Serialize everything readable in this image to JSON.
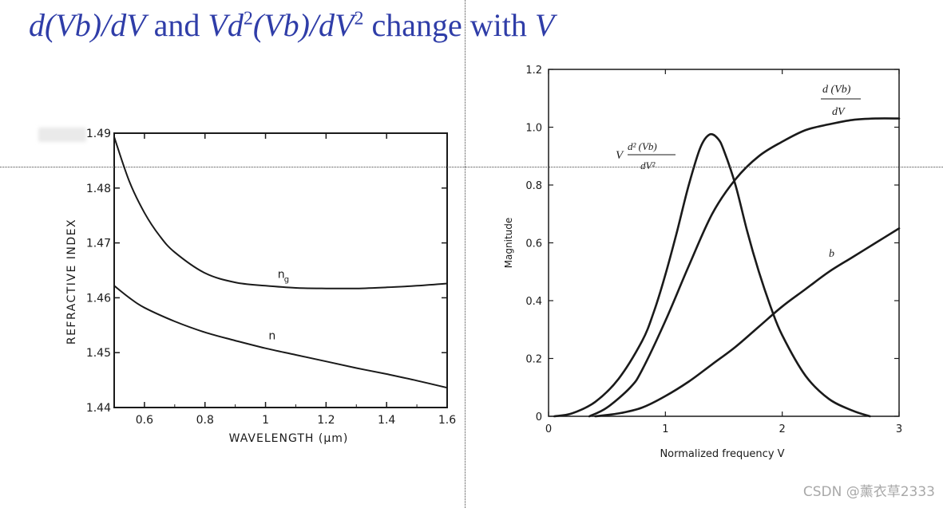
{
  "slide": {
    "title_parts": [
      "d(Vb)/dV",
      " and ",
      "Vd",
      "2",
      "(Vb)/dV",
      "2",
      " change with ",
      "V"
    ]
  },
  "colors": {
    "title": "#2f3da8",
    "curve": "#1a1a1a",
    "guides": "#444444"
  },
  "chart_data": [
    {
      "type": "line",
      "title": "",
      "xlabel": "WAVELENGTH (μm)",
      "ylabel": "REFRACTIVE INDEX",
      "xlim": [
        0.5,
        1.6
      ],
      "ylim": [
        1.44,
        1.49
      ],
      "xticks": [
        0.6,
        0.8,
        1,
        1.2,
        1.4,
        1.6
      ],
      "xtick_labels": [
        "0.6",
        "0.8",
        "1",
        "1.2",
        "1.4",
        "1.6"
      ],
      "yticks": [
        1.44,
        1.45,
        1.46,
        1.47,
        1.48,
        1.49
      ],
      "ytick_labels": [
        "1.44",
        "1.45",
        "1.46",
        "1.47",
        "1.48",
        "1.49"
      ],
      "grid": false,
      "series": [
        {
          "name": "ng",
          "label_main": "n",
          "label_sub": "g",
          "x": [
            0.5,
            0.55,
            0.6,
            0.65,
            0.7,
            0.8,
            0.9,
            1.0,
            1.1,
            1.2,
            1.3,
            1.4,
            1.5,
            1.6
          ],
          "y": [
            1.4893,
            1.4812,
            1.4755,
            1.4713,
            1.4683,
            1.4645,
            1.4628,
            1.4622,
            1.4618,
            1.4617,
            1.4617,
            1.4619,
            1.4622,
            1.4626
          ]
        },
        {
          "name": "n",
          "label_main": "n",
          "label_sub": "",
          "x": [
            0.5,
            0.55,
            0.6,
            0.7,
            0.8,
            0.9,
            1.0,
            1.1,
            1.2,
            1.3,
            1.4,
            1.5,
            1.6
          ],
          "y": [
            1.4622,
            1.46,
            1.4582,
            1.4557,
            1.4537,
            1.4522,
            1.4508,
            1.4496,
            1.4484,
            1.4472,
            1.4461,
            1.4449,
            1.4436
          ]
        }
      ]
    },
    {
      "type": "line",
      "title": "",
      "xlabel": "Normalized frequency V",
      "ylabel": "Magnitude",
      "xlim": [
        0,
        3
      ],
      "ylim": [
        0,
        1.2
      ],
      "xticks": [
        0,
        1,
        2,
        3
      ],
      "xtick_labels": [
        "0",
        "1",
        "2",
        "3"
      ],
      "yticks": [
        0,
        0.2,
        0.4,
        0.6,
        0.8,
        1.0,
        1.2
      ],
      "ytick_labels": [
        "0",
        "0.2",
        "0.4",
        "0.6",
        "0.8",
        "1.0",
        "1.2"
      ],
      "grid": false,
      "series": [
        {
          "name": "V d²(Vb)/dV²",
          "x": [
            0.05,
            0.2,
            0.4,
            0.6,
            0.8,
            0.9,
            1.0,
            1.1,
            1.2,
            1.3,
            1.38,
            1.45,
            1.5,
            1.6,
            1.7,
            1.8,
            1.9,
            2.0,
            2.2,
            2.4,
            2.6,
            2.75
          ],
          "y": [
            0.0,
            0.01,
            0.05,
            0.13,
            0.26,
            0.36,
            0.49,
            0.64,
            0.8,
            0.93,
            0.975,
            0.96,
            0.92,
            0.8,
            0.64,
            0.5,
            0.38,
            0.28,
            0.14,
            0.06,
            0.02,
            0.0
          ]
        },
        {
          "name": "d(Vb)/dV",
          "x": [
            0.35,
            0.5,
            0.7,
            0.8,
            1.0,
            1.2,
            1.4,
            1.6,
            1.8,
            2.0,
            2.2,
            2.4,
            2.6,
            2.8,
            3.0
          ],
          "y": [
            0.0,
            0.03,
            0.1,
            0.16,
            0.33,
            0.52,
            0.7,
            0.82,
            0.9,
            0.95,
            0.99,
            1.01,
            1.025,
            1.03,
            1.03
          ]
        },
        {
          "name": "b",
          "x": [
            0.4,
            0.6,
            0.8,
            1.0,
            1.2,
            1.4,
            1.6,
            1.8,
            2.0,
            2.2,
            2.4,
            2.6,
            2.8,
            3.0
          ],
          "y": [
            0.0,
            0.01,
            0.03,
            0.07,
            0.12,
            0.18,
            0.24,
            0.31,
            0.38,
            0.44,
            0.5,
            0.55,
            0.6,
            0.65
          ]
        }
      ],
      "annotations": {
        "d2": {
          "V": "V",
          "num": "d² (Vb)",
          "den": "dV²"
        },
        "d1": {
          "num": "d (Vb)",
          "den": "dV"
        },
        "b": "b"
      }
    }
  ],
  "watermark": "CSDN @薰衣草2333"
}
